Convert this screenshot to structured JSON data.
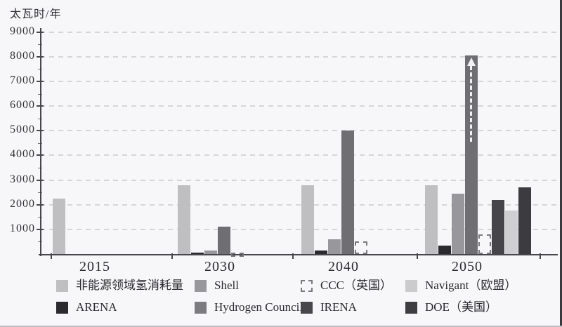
{
  "chart_data": {
    "type": "bar",
    "unit_label": "太瓦时/年",
    "ylabel": "太瓦时/年",
    "xlabel": "",
    "ylim": [
      0,
      9000
    ],
    "yticks": {
      "step": 1000,
      "labels": [
        "1000",
        "2000",
        "3000",
        "4000",
        "5000",
        "6000",
        "7000",
        "8000",
        "9000"
      ]
    },
    "grid": "dashed-horizontal",
    "legend_position": "bottom",
    "categories": [
      "2015",
      "2030",
      "2040",
      "2050"
    ],
    "series": [
      {
        "key": "non-energy",
        "name": "非能源领域氢消耗量",
        "color": "#bfbfc1",
        "style": "solid",
        "values": [
          2250,
          2800,
          2800,
          2800
        ]
      },
      {
        "key": "arena",
        "name": "ARENA",
        "color": "#2b2b2f",
        "style": "solid",
        "values": [
          null,
          50,
          150,
          350
        ]
      },
      {
        "key": "shell",
        "name": "Shell",
        "color": "#98989c",
        "style": "solid",
        "values": [
          null,
          150,
          600,
          2450
        ]
      },
      {
        "key": "hydrogen-council",
        "name": "Hydrogen Council",
        "color": "#6f6f73",
        "style": "solid",
        "values": [
          null,
          1100,
          5000,
          8050
        ],
        "arrow_beyond": [
          false,
          false,
          false,
          true
        ]
      },
      {
        "key": "ccc",
        "name": "CCC（英国）",
        "color": "#7a7a7e",
        "style": "dashed",
        "values": [
          null,
          50,
          500,
          800
        ]
      },
      {
        "key": "irena",
        "name": "IRENA",
        "color": "#46464a",
        "style": "solid",
        "values": [
          null,
          null,
          null,
          2200
        ]
      },
      {
        "key": "navigant",
        "name": "Navigant（欧盟）",
        "color": "#cfcfd1",
        "style": "solid",
        "values": [
          null,
          null,
          null,
          1750
        ]
      },
      {
        "key": "doe",
        "name": "DOE（美国）",
        "color": "#3c3c40",
        "style": "solid",
        "values": [
          null,
          null,
          null,
          2700
        ]
      }
    ]
  },
  "legend": {
    "rows": [
      [
        {
          "key": "non-energy",
          "label": "非能源领域氢消耗量",
          "swatch": "solid",
          "color": "#bfbfc1"
        },
        {
          "key": "shell",
          "label": "Shell",
          "swatch": "solid",
          "color": "#98989c"
        },
        {
          "key": "ccc",
          "label": "CCC（英国）",
          "swatch": "dashed",
          "color": "#7a7a7e"
        },
        {
          "key": "navigant",
          "label": "Navigant（欧盟）",
          "swatch": "solid",
          "color": "#cbcbcd"
        }
      ],
      [
        {
          "key": "arena",
          "label": "ARENA",
          "swatch": "solid",
          "color": "#2b2b2f"
        },
        {
          "key": "hydrogen-council",
          "label": "Hydrogen Council",
          "swatch": "solid",
          "color": "#7c7c80"
        },
        {
          "key": "irena",
          "label": "IRENA",
          "swatch": "solid",
          "color": "#48484c"
        },
        {
          "key": "doe",
          "label": "DOE（美国）",
          "swatch": "solid",
          "color": "#3e3e42"
        }
      ]
    ]
  },
  "colors": {
    "background": "#f7f7f9",
    "axis": "#47474b",
    "grid": "#d6d6d8",
    "text": "#2f2f33",
    "arrow": "#f2f2f4"
  }
}
